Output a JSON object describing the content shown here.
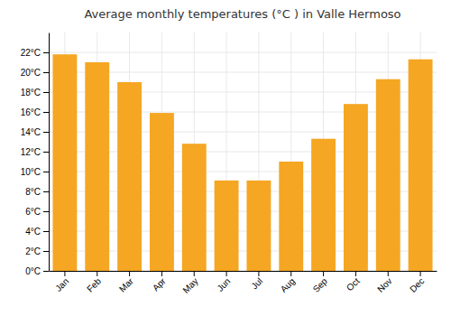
{
  "chart_data": {
    "type": "bar",
    "title": "Average monthly temperatures (°C ) in Valle Hermoso",
    "categories": [
      "Jan",
      "Feb",
      "Mar",
      "Apr",
      "May",
      "Jun",
      "Jul",
      "Aug",
      "Sep",
      "Oct",
      "Nov",
      "Dec"
    ],
    "values": [
      21.8,
      21.0,
      19.0,
      15.9,
      12.8,
      9.1,
      9.1,
      11.0,
      13.3,
      16.8,
      19.3,
      21.3
    ],
    "color": "#F5A623",
    "ylim": [
      0,
      24
    ],
    "yticks": [
      {
        "value": 0,
        "label": "0°C"
      },
      {
        "value": 2,
        "label": "2°C"
      },
      {
        "value": 4,
        "label": "4°C"
      },
      {
        "value": 6,
        "label": "6°C"
      },
      {
        "value": 8,
        "label": "8°C"
      },
      {
        "value": 10,
        "label": "10°C"
      },
      {
        "value": 12,
        "label": "12°C"
      },
      {
        "value": 14,
        "label": "14°C"
      },
      {
        "value": 16,
        "label": "16°C"
      },
      {
        "value": 18,
        "label": "18°C"
      },
      {
        "value": 20,
        "label": "20°C"
      },
      {
        "value": 22,
        "label": "22°C"
      }
    ],
    "grid": true
  }
}
